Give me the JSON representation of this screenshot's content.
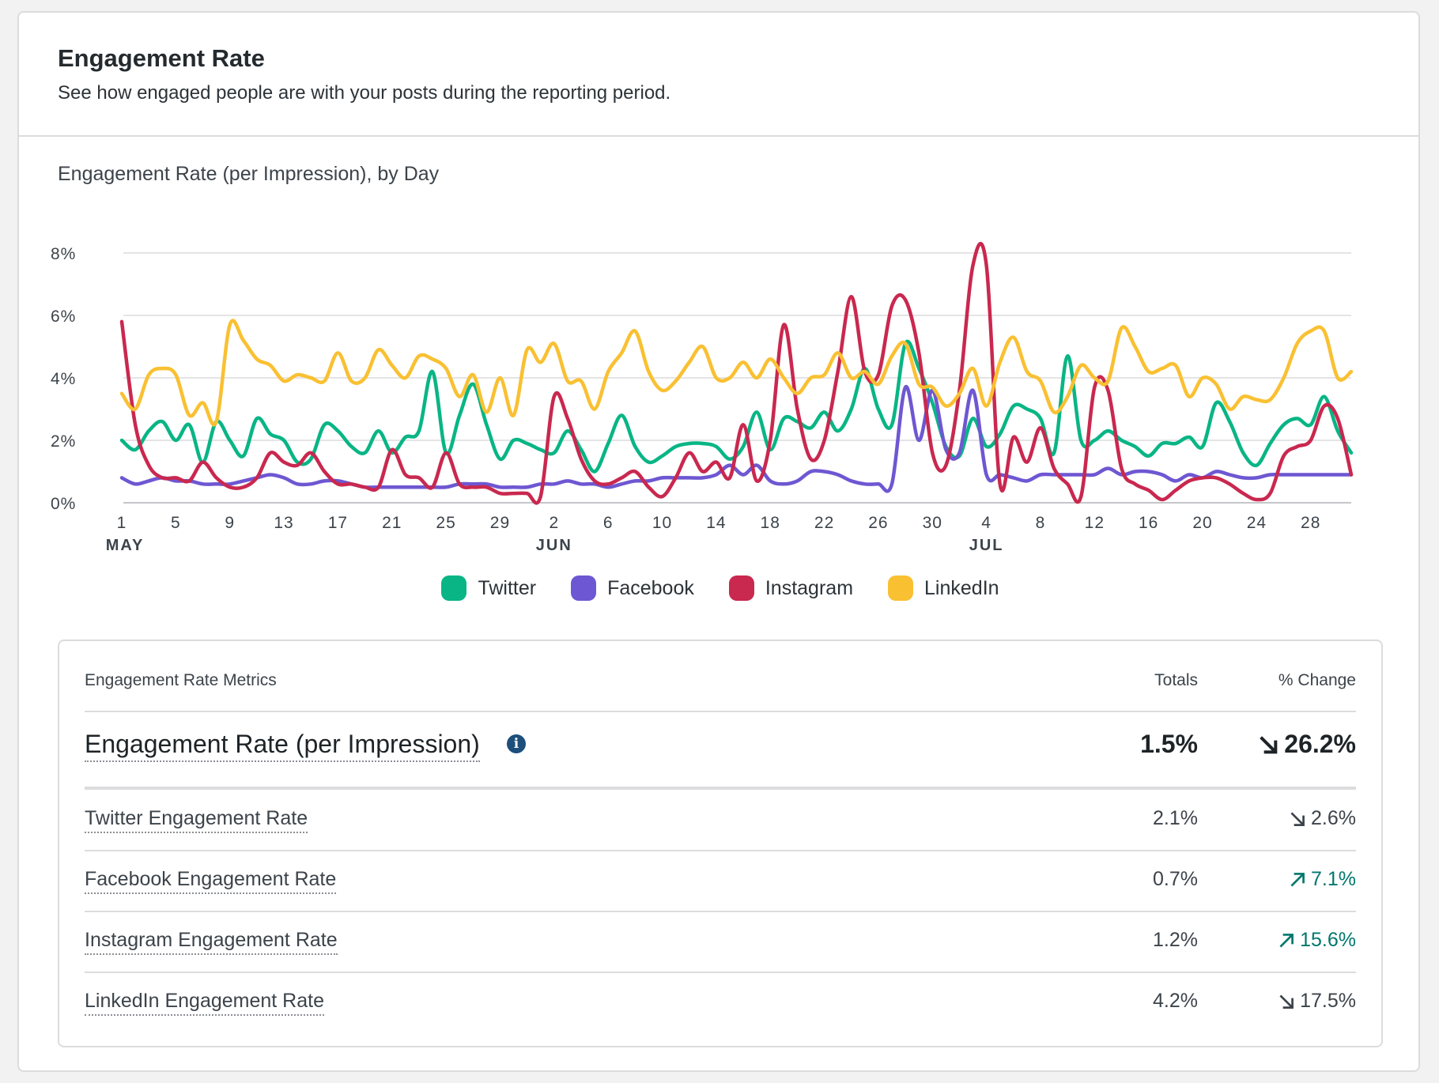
{
  "header": {
    "title": "Engagement Rate",
    "description": "See how engaged people are with your posts during the reporting period."
  },
  "chart_title": "Engagement Rate (per Impression), by Day",
  "chart_data": {
    "type": "line",
    "title": "Engagement Rate (per Impression), by Day",
    "ylabel": "",
    "xlabel": "",
    "ylim": [
      0,
      8
    ],
    "y_ticks": [
      "0%",
      "2%",
      "4%",
      "6%",
      "8%"
    ],
    "x_ticks": [
      {
        "day": 0,
        "label": "1",
        "month": "MAY"
      },
      {
        "day": 4,
        "label": "5"
      },
      {
        "day": 8,
        "label": "9"
      },
      {
        "day": 12,
        "label": "13"
      },
      {
        "day": 16,
        "label": "17"
      },
      {
        "day": 20,
        "label": "21"
      },
      {
        "day": 24,
        "label": "25"
      },
      {
        "day": 28,
        "label": "29"
      },
      {
        "day": 32,
        "label": "2",
        "month": "JUN"
      },
      {
        "day": 36,
        "label": "6"
      },
      {
        "day": 40,
        "label": "10"
      },
      {
        "day": 44,
        "label": "14"
      },
      {
        "day": 48,
        "label": "18"
      },
      {
        "day": 52,
        "label": "22"
      },
      {
        "day": 56,
        "label": "26"
      },
      {
        "day": 60,
        "label": "30"
      },
      {
        "day": 64,
        "label": "4",
        "month": "JUL"
      },
      {
        "day": 68,
        "label": "8"
      },
      {
        "day": 72,
        "label": "12"
      },
      {
        "day": 76,
        "label": "16"
      },
      {
        "day": 80,
        "label": "20"
      },
      {
        "day": 84,
        "label": "24"
      },
      {
        "day": 88,
        "label": "28"
      }
    ],
    "x_range": [
      0,
      91
    ],
    "series": [
      {
        "name": "Twitter",
        "color": "#09b585",
        "values": [
          2.0,
          1.7,
          2.3,
          2.6,
          2.0,
          2.5,
          1.3,
          2.6,
          2.0,
          1.5,
          2.7,
          2.2,
          2.0,
          1.3,
          1.4,
          2.5,
          2.3,
          1.8,
          1.6,
          2.3,
          1.6,
          2.1,
          2.3,
          4.2,
          1.6,
          2.8,
          3.8,
          2.5,
          1.4,
          2.0,
          1.9,
          1.7,
          1.6,
          2.3,
          1.7,
          1.0,
          1.9,
          2.8,
          1.8,
          1.3,
          1.5,
          1.8,
          1.9,
          1.9,
          1.8,
          1.4,
          1.8,
          2.9,
          1.7,
          2.7,
          2.6,
          2.4,
          2.9,
          2.3,
          3.0,
          4.3,
          3.0,
          2.5,
          5.1,
          4.3,
          3.2,
          1.8,
          1.5,
          2.7,
          1.8,
          2.2,
          3.1,
          3.0,
          2.7,
          1.6,
          4.7,
          2.0,
          2.0,
          2.3,
          2.0,
          1.8,
          1.5,
          1.9,
          1.9,
          2.1,
          1.8,
          3.2,
          2.6,
          1.6,
          1.2,
          1.9,
          2.5,
          2.7,
          2.5,
          3.4,
          2.3,
          1.6
        ]
      },
      {
        "name": "Facebook",
        "color": "#6e57d2",
        "values": [
          0.8,
          0.6,
          0.7,
          0.8,
          0.7,
          0.7,
          0.6,
          0.6,
          0.6,
          0.7,
          0.8,
          0.9,
          0.8,
          0.6,
          0.6,
          0.7,
          0.7,
          0.6,
          0.5,
          0.5,
          0.5,
          0.5,
          0.5,
          0.5,
          0.5,
          0.6,
          0.6,
          0.6,
          0.5,
          0.5,
          0.5,
          0.6,
          0.6,
          0.7,
          0.6,
          0.6,
          0.5,
          0.6,
          0.7,
          0.7,
          0.8,
          0.8,
          0.8,
          0.8,
          0.9,
          1.2,
          0.9,
          1.2,
          0.7,
          0.6,
          0.7,
          1.0,
          1.0,
          0.9,
          0.7,
          0.6,
          0.6,
          0.6,
          3.7,
          2.0,
          3.6,
          1.7,
          1.6,
          3.6,
          0.9,
          0.9,
          0.8,
          0.7,
          0.9,
          0.9,
          0.9,
          0.9,
          0.9,
          1.1,
          0.9,
          1.0,
          1.0,
          0.9,
          0.7,
          0.9,
          0.8,
          1.0,
          0.9,
          0.8,
          0.8,
          0.9,
          0.9,
          0.9,
          0.9,
          0.9,
          0.9,
          0.9
        ]
      },
      {
        "name": "Instagram",
        "color": "#c9284f",
        "values": [
          5.8,
          2.5,
          1.2,
          0.8,
          0.8,
          0.7,
          1.3,
          0.8,
          0.5,
          0.5,
          0.8,
          1.6,
          1.3,
          1.2,
          1.6,
          1.0,
          0.6,
          0.6,
          0.5,
          0.5,
          1.7,
          0.9,
          0.8,
          0.5,
          1.6,
          0.6,
          0.5,
          0.5,
          0.3,
          0.3,
          0.3,
          0.2,
          3.4,
          2.7,
          1.4,
          0.7,
          0.6,
          0.8,
          1.0,
          0.5,
          0.2,
          0.8,
          1.6,
          1.0,
          1.3,
          0.8,
          2.5,
          0.7,
          2.0,
          5.7,
          3.0,
          1.4,
          2.0,
          4.2,
          6.6,
          4.2,
          4.1,
          6.3,
          6.5,
          4.8,
          1.6,
          1.2,
          3.6,
          7.6,
          7.6,
          0.6,
          2.1,
          1.3,
          2.4,
          1.1,
          0.6,
          0.2,
          3.7,
          3.6,
          1.1,
          0.6,
          0.4,
          0.1,
          0.4,
          0.7,
          0.8,
          0.8,
          0.6,
          0.3,
          0.1,
          0.3,
          1.5,
          1.8,
          2.0,
          3.1,
          2.7,
          0.9
        ]
      },
      {
        "name": "LinkedIn",
        "color": "#f9c032",
        "values": [
          3.5,
          3.0,
          4.1,
          4.3,
          4.1,
          2.8,
          3.2,
          2.6,
          5.7,
          5.2,
          4.6,
          4.4,
          3.9,
          4.1,
          4.0,
          3.9,
          4.8,
          3.9,
          4.0,
          4.9,
          4.4,
          4.0,
          4.7,
          4.6,
          4.3,
          3.4,
          4.1,
          2.9,
          4.0,
          2.8,
          4.9,
          4.5,
          5.1,
          3.9,
          3.9,
          3.0,
          4.2,
          4.8,
          5.5,
          4.2,
          3.6,
          3.9,
          4.5,
          5.0,
          4.0,
          4.0,
          4.5,
          4.0,
          4.6,
          4.0,
          3.5,
          4.0,
          4.1,
          4.8,
          4.0,
          4.2,
          3.8,
          4.7,
          5.1,
          3.8,
          3.7,
          3.1,
          3.5,
          4.3,
          3.1,
          4.5,
          5.3,
          4.2,
          3.9,
          2.9,
          3.4,
          4.4,
          4.0,
          3.9,
          5.6,
          5.0,
          4.2,
          4.3,
          4.4,
          3.4,
          4.0,
          3.8,
          3.0,
          3.4,
          3.3,
          3.3,
          4.0,
          5.1,
          5.5,
          5.5,
          4.0,
          4.2
        ]
      }
    ]
  },
  "legend": [
    {
      "label": "Twitter",
      "color": "#09b585"
    },
    {
      "label": "Facebook",
      "color": "#6e57d2"
    },
    {
      "label": "Instagram",
      "color": "#c9284f"
    },
    {
      "label": "LinkedIn",
      "color": "#f9c032"
    }
  ],
  "metrics": {
    "header_label": "Engagement Rate Metrics",
    "header_totals": "Totals",
    "header_change": "% Change",
    "main": {
      "label": "Engagement Rate (per Impression)",
      "info_icon": "i",
      "total": "1.5%",
      "change": "26.2%",
      "direction": "down"
    },
    "rows": [
      {
        "label": "Twitter Engagement Rate",
        "total": "2.1%",
        "change": "2.6%",
        "direction": "down"
      },
      {
        "label": "Facebook Engagement Rate",
        "total": "0.7%",
        "change": "7.1%",
        "direction": "up"
      },
      {
        "label": "Instagram Engagement Rate",
        "total": "1.2%",
        "change": "15.6%",
        "direction": "up"
      },
      {
        "label": "LinkedIn Engagement Rate",
        "total": "4.2%",
        "change": "17.5%",
        "direction": "down"
      }
    ]
  }
}
